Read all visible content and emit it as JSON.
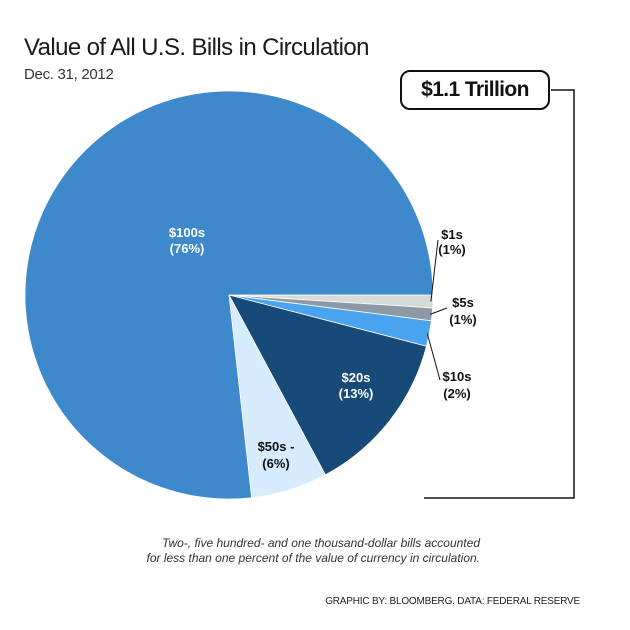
{
  "title": "Value of All U.S. Bills in Circulation",
  "subtitle": "Dec. 31, 2012",
  "total_badge": "$1.1 Trillion",
  "note_line1": "Two-, five hundred- and one thousand-dollar bills accounted",
  "note_line2": "for less than one percent of the value of currency in circulation.",
  "credit": "GRAPHIC BY: BLOOMBERG. DATA: FEDERAL RESERVE",
  "chart_data": {
    "type": "pie",
    "title": "Value of All U.S. Bills in Circulation",
    "subtitle": "Dec. 31, 2012",
    "total": "$1.1 Trillion",
    "unit": "percent of total value",
    "slices": [
      {
        "label": "$1s",
        "pct_label": "(1%)",
        "value": 1,
        "color": "#d9d9d9",
        "label_side": "outside"
      },
      {
        "label": "$5s",
        "pct_label": "(1%)",
        "value": 1,
        "color": "#8d9aa6",
        "label_side": "outside"
      },
      {
        "label": "$10s",
        "pct_label": "(2%)",
        "value": 2,
        "color": "#4aa3ee",
        "label_side": "outside"
      },
      {
        "label": "$20s",
        "pct_label": "(13%)",
        "value": 13,
        "color": "#174a78",
        "label_side": "inside",
        "text_color": "#ffffff"
      },
      {
        "label": "$50s -",
        "pct_label": "(6%)",
        "value": 6,
        "color": "#d6ebfb",
        "label_side": "inside",
        "text_color": "#111111"
      },
      {
        "label": "$100s",
        "pct_label": "(76%)",
        "value": 76,
        "color": "#3e89cb",
        "label_side": "inside",
        "text_color": "#ffffff"
      }
    ]
  }
}
